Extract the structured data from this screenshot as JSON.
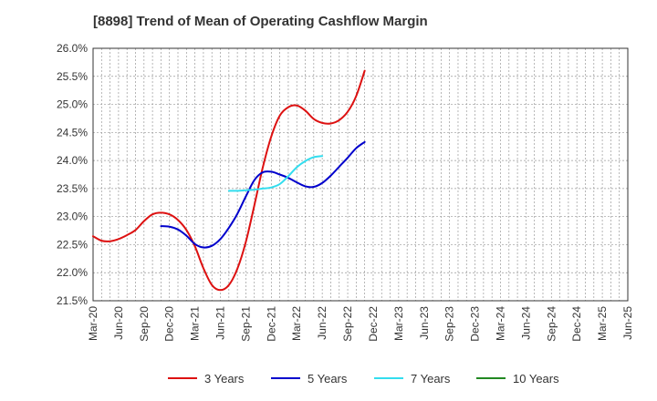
{
  "chart_data": {
    "type": "line",
    "title": "[8898]  Trend of Mean of Operating Cashflow Margin",
    "xlabel": "",
    "ylabel": "",
    "ylim": [
      21.5,
      26.0
    ],
    "y_ticks": [
      21.5,
      22.0,
      22.5,
      23.0,
      23.5,
      24.0,
      24.5,
      25.0,
      25.5,
      26.0
    ],
    "y_tick_labels": [
      "21.5%",
      "22.0%",
      "22.5%",
      "23.0%",
      "23.5%",
      "24.0%",
      "24.5%",
      "25.0%",
      "25.5%",
      "26.0%"
    ],
    "x_tick_labels": [
      "Mar-20",
      "Jun-20",
      "Sep-20",
      "Dec-20",
      "Mar-21",
      "Jun-21",
      "Sep-21",
      "Dec-21",
      "Mar-22",
      "Jun-22",
      "Sep-22",
      "Dec-22",
      "Mar-23",
      "Jun-23",
      "Sep-23",
      "Dec-23",
      "Mar-24",
      "Jun-24",
      "Sep-24",
      "Dec-24",
      "Mar-25",
      "Jun-25"
    ],
    "grid": true,
    "legend_position": "bottom",
    "series": [
      {
        "name": "3 Years",
        "color": "#dd1111",
        "start_index": 0,
        "values": [
          22.65,
          22.57,
          22.56,
          22.6,
          22.67,
          22.76,
          22.92,
          23.04,
          23.07,
          23.04,
          22.94,
          22.76,
          22.47,
          22.08,
          21.78,
          21.69,
          21.78,
          22.07,
          22.55,
          23.2,
          23.88,
          24.43,
          24.8,
          24.95,
          24.98,
          24.89,
          24.74,
          24.67,
          24.66,
          24.72,
          24.87,
          25.15,
          25.6
        ]
      },
      {
        "name": "5 Years",
        "color": "#0000cc",
        "start_index": 8,
        "values": [
          22.83,
          22.82,
          22.77,
          22.66,
          22.51,
          22.45,
          22.48,
          22.6,
          22.8,
          23.05,
          23.36,
          23.65,
          23.79,
          23.8,
          23.75,
          23.69,
          23.61,
          23.54,
          23.53,
          23.6,
          23.73,
          23.89,
          24.05,
          24.22,
          24.33
        ]
      },
      {
        "name": "7 Years",
        "color": "#33ddee",
        "start_index": 16,
        "values": [
          23.46,
          23.46,
          23.47,
          23.48,
          23.5,
          23.52,
          23.58,
          23.72,
          23.88,
          23.99,
          24.06,
          24.08
        ]
      },
      {
        "name": "10 Years",
        "color": "#228822",
        "start_index": 0,
        "values": []
      }
    ]
  }
}
